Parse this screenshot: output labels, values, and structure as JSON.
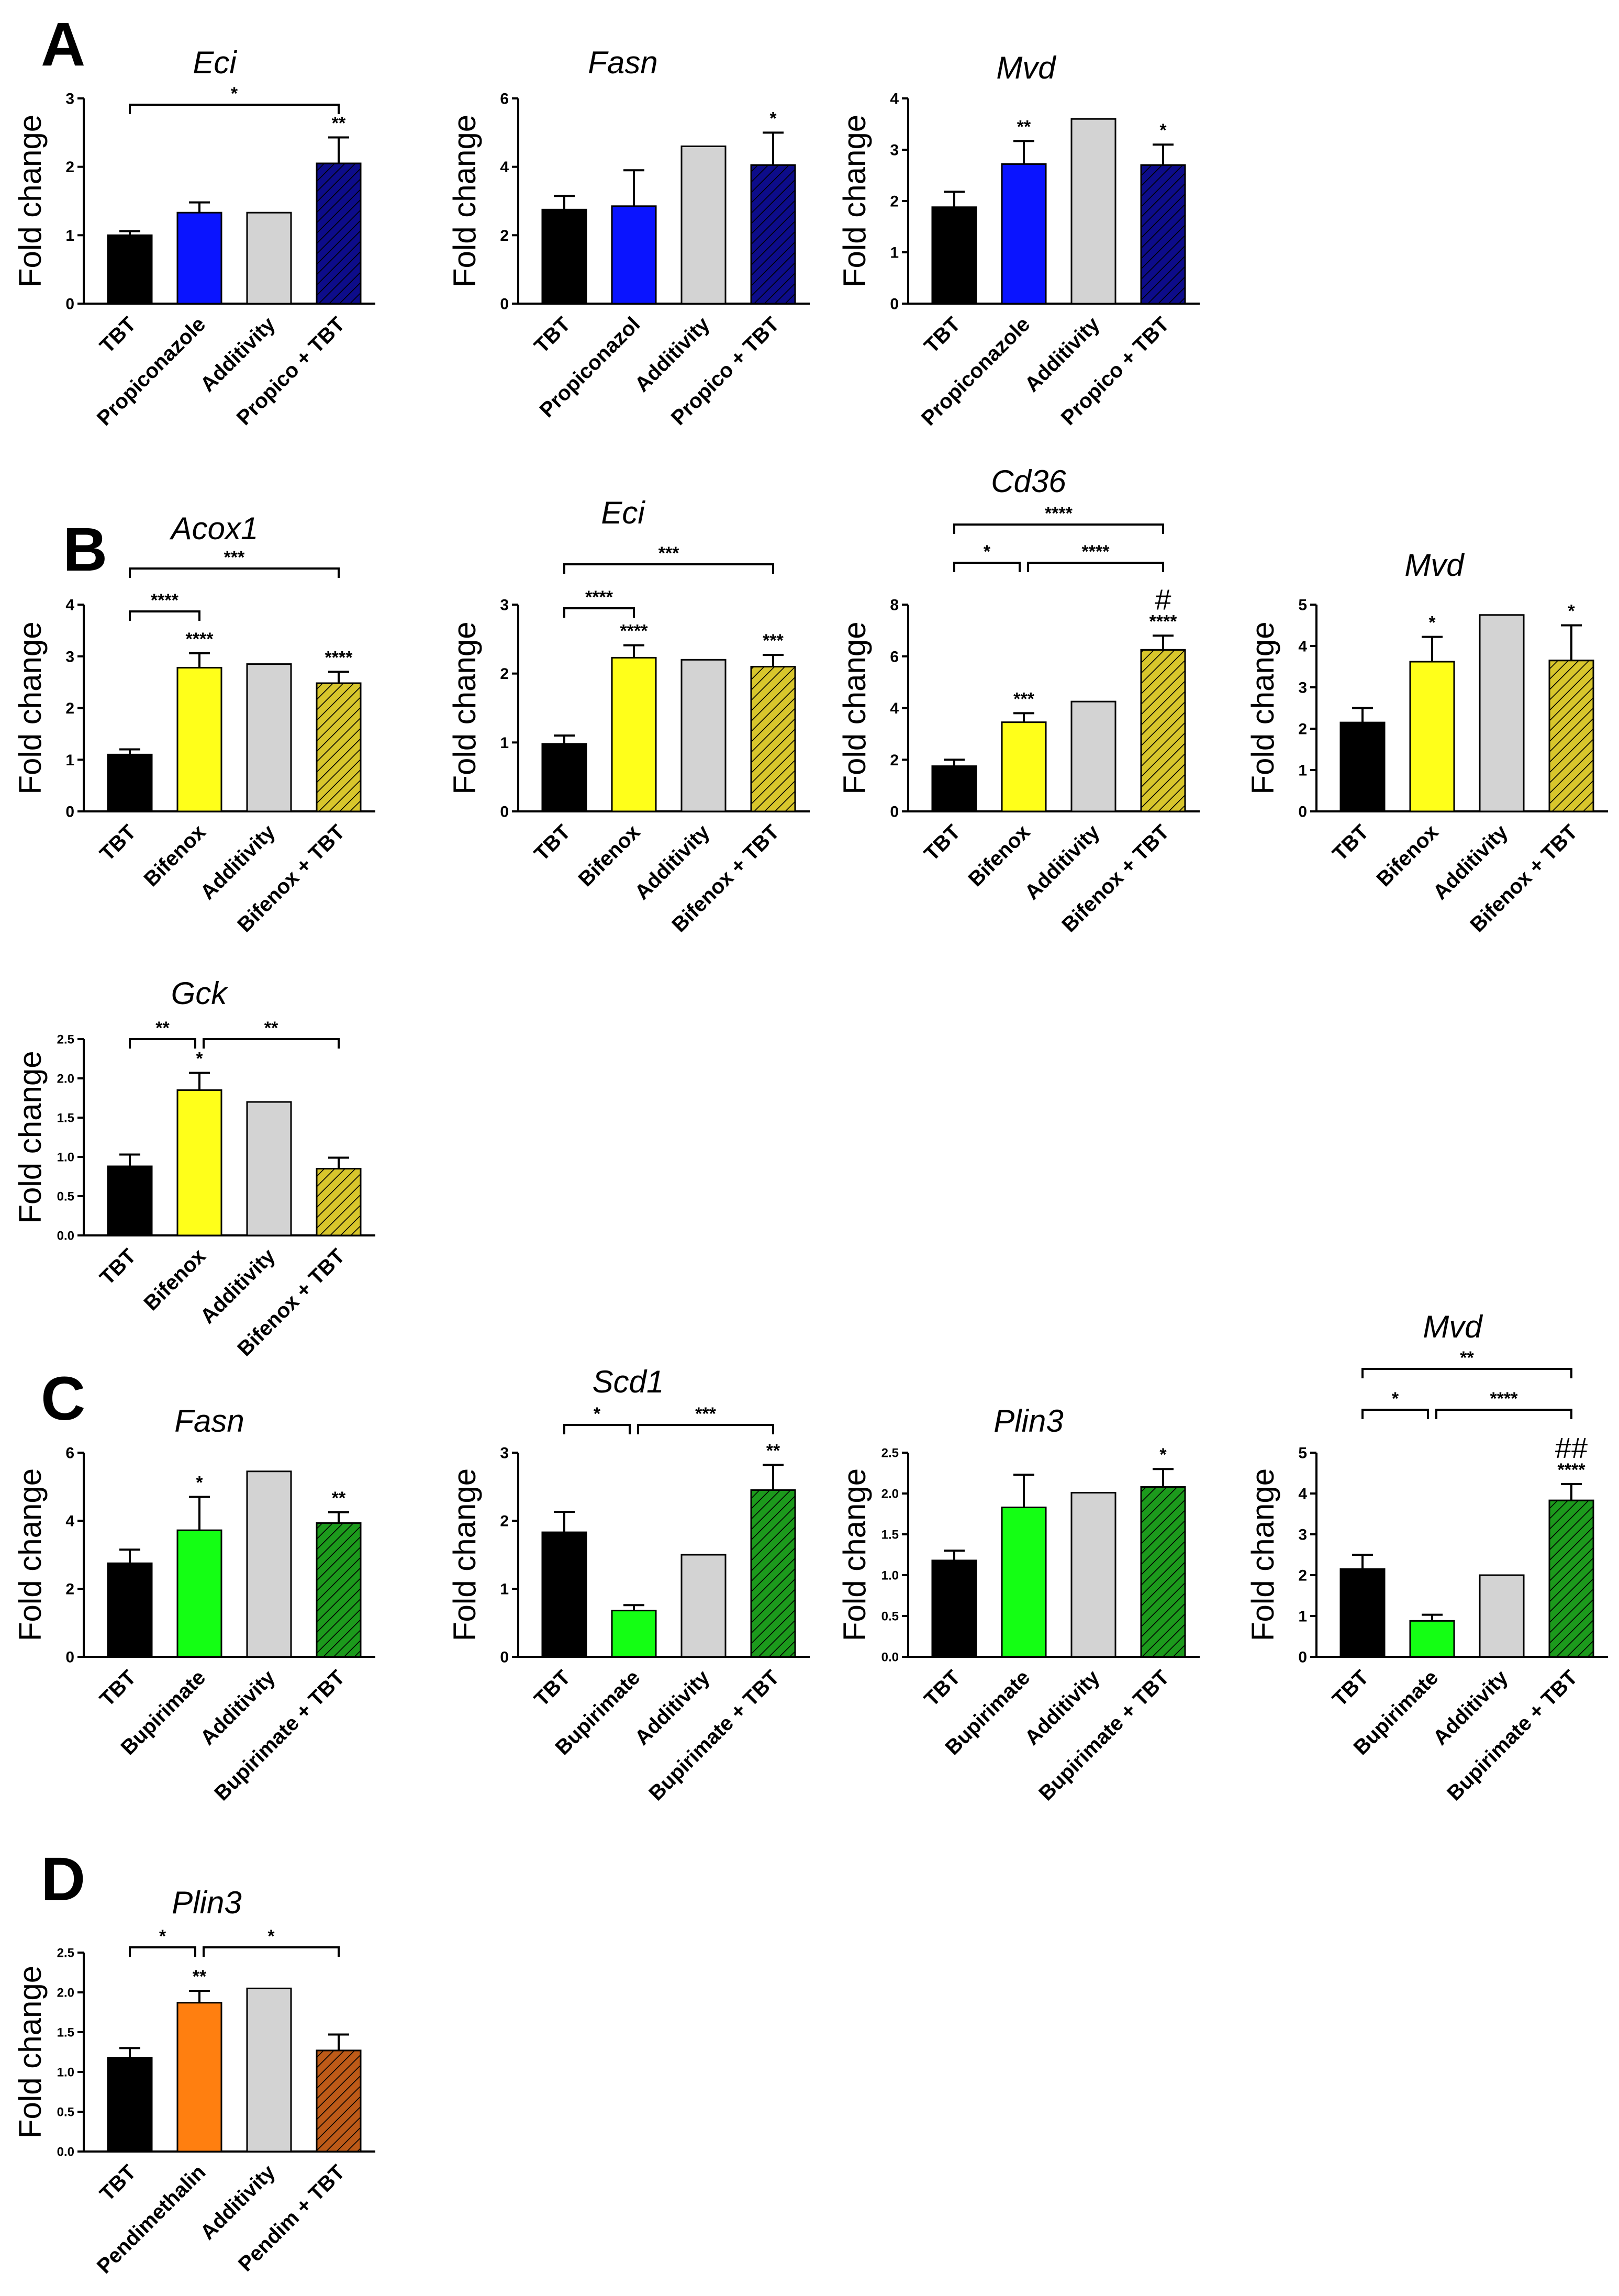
{
  "panels": [
    {
      "id": "A",
      "label": "A"
    },
    {
      "id": "B",
      "label": "B"
    },
    {
      "id": "C",
      "label": "C"
    },
    {
      "id": "D",
      "label": "D"
    }
  ],
  "colors": {
    "TBT": "#000000",
    "Propiconazole": "#0a14ff",
    "Propico + TBT": "#0d0c8a",
    "Bifenox": "#ffff1a",
    "Bifenox + TBT": "#d8c62c",
    "Bupirimate": "#14ff14",
    "Bupirimate + TBT": "#1c9a1c",
    "Pendimethalin": "#ff7f10",
    "Pendim + TBT": "#bd5a18",
    "Additivity": "#d3d3d3"
  },
  "chart_data": [
    {
      "type": "bar",
      "panel": "A",
      "gene": "Eci",
      "ylabel": "Fold change",
      "categories": [
        "TBT",
        "Propiconazole",
        "Additivity",
        "Propico + TBT"
      ],
      "values": [
        1.0,
        1.33,
        1.33,
        2.05
      ],
      "errors": [
        0.06,
        0.15,
        0,
        0.38
      ],
      "ylim": [
        0,
        3
      ],
      "yticks": [
        0,
        1,
        2,
        3
      ],
      "bar_stars": [
        "",
        "",
        "",
        "**"
      ],
      "bar_hash": [
        "",
        "",
        "",
        ""
      ],
      "brackets": [
        {
          "from": 0,
          "to": 3,
          "label": "*"
        }
      ]
    },
    {
      "type": "bar",
      "panel": "A",
      "gene": "Fasn",
      "ylabel": "Fold change",
      "categories": [
        "TBT",
        "Propiconazol",
        "Additivity",
        "Propico + TBT"
      ],
      "values": [
        2.75,
        2.85,
        4.6,
        4.05
      ],
      "errors": [
        0.4,
        1.05,
        0,
        0.95
      ],
      "ylim": [
        0,
        6
      ],
      "yticks": [
        0,
        2,
        4,
        6
      ],
      "bar_stars": [
        "",
        "",
        "",
        "*"
      ],
      "bar_hash": [
        "",
        "",
        "",
        ""
      ],
      "brackets": []
    },
    {
      "type": "bar",
      "panel": "A",
      "gene": "Mvd",
      "ylabel": "Fold change",
      "categories": [
        "TBT",
        "Propiconazole",
        "Additivity",
        "Propico + TBT"
      ],
      "values": [
        1.88,
        2.72,
        3.6,
        2.7
      ],
      "errors": [
        0.3,
        0.45,
        0,
        0.4
      ],
      "ylim": [
        0,
        4
      ],
      "yticks": [
        0,
        1,
        2,
        3,
        4
      ],
      "bar_stars": [
        "",
        "**",
        "",
        "*"
      ],
      "bar_hash": [
        "",
        "",
        "",
        ""
      ],
      "brackets": []
    },
    {
      "type": "bar",
      "panel": "B",
      "gene": "Acox1",
      "ylabel": "Fold change",
      "categories": [
        "TBT",
        "Bifenox",
        "Additivity",
        "Bifenox + TBT"
      ],
      "values": [
        1.1,
        2.78,
        2.85,
        2.48
      ],
      "errors": [
        0.1,
        0.28,
        0,
        0.22
      ],
      "ylim": [
        0,
        4
      ],
      "yticks": [
        0,
        1,
        2,
        3,
        4
      ],
      "bar_stars": [
        "",
        "****",
        "",
        "****"
      ],
      "bar_hash": [
        "",
        "",
        "",
        ""
      ],
      "brackets": [
        {
          "from": 0,
          "to": 1,
          "label": "****"
        },
        {
          "from": 0,
          "to": 3,
          "label": "***"
        }
      ]
    },
    {
      "type": "bar",
      "panel": "B",
      "gene": "Eci",
      "ylabel": "Fold change",
      "categories": [
        "TBT",
        "Bifenox",
        "Additivity",
        "Bifenox + TBT"
      ],
      "values": [
        0.98,
        2.23,
        2.2,
        2.1
      ],
      "errors": [
        0.12,
        0.18,
        0,
        0.17
      ],
      "ylim": [
        0,
        3
      ],
      "yticks": [
        0,
        1,
        2,
        3
      ],
      "bar_stars": [
        "",
        "****",
        "",
        "***"
      ],
      "bar_hash": [
        "",
        "",
        "",
        ""
      ],
      "brackets": [
        {
          "from": 0,
          "to": 1,
          "label": "****"
        },
        {
          "from": 0,
          "to": 3,
          "label": "***"
        }
      ]
    },
    {
      "type": "bar",
      "panel": "B",
      "gene": "Cd36",
      "ylabel": "Fold change",
      "categories": [
        "TBT",
        "Bifenox",
        "Additivity",
        "Bifenox + TBT"
      ],
      "values": [
        1.75,
        3.45,
        4.25,
        6.25
      ],
      "errors": [
        0.25,
        0.35,
        0,
        0.55
      ],
      "ylim": [
        0,
        8
      ],
      "yticks": [
        0,
        2,
        4,
        6,
        8
      ],
      "bar_stars": [
        "",
        "***",
        "",
        "****"
      ],
      "bar_hash": [
        "",
        "",
        "",
        "#"
      ],
      "brackets": [
        {
          "from": 0,
          "to": 1,
          "label": "*"
        },
        {
          "from": 1,
          "to": 3,
          "label": "****"
        },
        {
          "from": 0,
          "to": 3,
          "label": "****"
        }
      ]
    },
    {
      "type": "bar",
      "panel": "B",
      "gene": "Mvd",
      "ylabel": "Fold change",
      "categories": [
        "TBT",
        "Bifenox",
        "Additivity",
        "Bifenox + TBT"
      ],
      "values": [
        2.15,
        3.62,
        4.75,
        3.65
      ],
      "errors": [
        0.35,
        0.6,
        0,
        0.85
      ],
      "ylim": [
        0,
        5
      ],
      "yticks": [
        0,
        1,
        2,
        3,
        4,
        5
      ],
      "bar_stars": [
        "",
        "*",
        "",
        "*"
      ],
      "bar_hash": [
        "",
        "",
        "",
        ""
      ],
      "brackets": []
    },
    {
      "type": "bar",
      "panel": "B",
      "gene": "Gck",
      "ylabel": "Fold change",
      "categories": [
        "TBT",
        "Bifenox",
        "Additivity",
        "Bifenox + TBT"
      ],
      "values": [
        0.88,
        1.85,
        1.7,
        0.85
      ],
      "errors": [
        0.15,
        0.22,
        0,
        0.14
      ],
      "ylim": [
        0,
        2.5
      ],
      "yticks": [
        0.0,
        0.5,
        1.0,
        1.5,
        2.0,
        2.5
      ],
      "bar_stars": [
        "",
        "*",
        "",
        ""
      ],
      "bar_hash": [
        "",
        "",
        "",
        ""
      ],
      "brackets": [
        {
          "from": 0,
          "to": 1,
          "label": "**"
        },
        {
          "from": 1,
          "to": 3,
          "label": "**"
        }
      ]
    },
    {
      "type": "bar",
      "panel": "C",
      "gene": "Fasn",
      "ylabel": "Fold change",
      "categories": [
        "TBT",
        "Bupirimate",
        "Additivity",
        "Bupirimate + TBT"
      ],
      "values": [
        2.75,
        3.72,
        5.45,
        3.93
      ],
      "errors": [
        0.4,
        0.98,
        0,
        0.32
      ],
      "ylim": [
        0,
        6
      ],
      "yticks": [
        0,
        2,
        4,
        6
      ],
      "bar_stars": [
        "",
        "*",
        "",
        "**"
      ],
      "bar_hash": [
        "",
        "",
        "",
        ""
      ],
      "brackets": []
    },
    {
      "type": "bar",
      "panel": "C",
      "gene": "Scd1",
      "ylabel": "Fold change",
      "categories": [
        "TBT",
        "Bupirimate",
        "Additivity",
        "Bupirimate + TBT"
      ],
      "values": [
        1.83,
        0.68,
        1.5,
        2.45
      ],
      "errors": [
        0.3,
        0.08,
        0,
        0.37
      ],
      "ylim": [
        0,
        3
      ],
      "yticks": [
        0,
        1,
        2,
        3
      ],
      "bar_stars": [
        "",
        "",
        "",
        "**"
      ],
      "bar_hash": [
        "",
        "",
        "",
        ""
      ],
      "brackets": [
        {
          "from": 0,
          "to": 1,
          "label": "*"
        },
        {
          "from": 1,
          "to": 3,
          "label": "***"
        }
      ]
    },
    {
      "type": "bar",
      "panel": "C",
      "gene": "Plin3",
      "ylabel": "Fold change",
      "categories": [
        "TBT",
        "Bupirimate",
        "Additivity",
        "Bupirimate + TBT"
      ],
      "values": [
        1.18,
        1.83,
        2.01,
        2.08
      ],
      "errors": [
        0.12,
        0.4,
        0,
        0.22
      ],
      "ylim": [
        0,
        2.5
      ],
      "yticks": [
        0.0,
        0.5,
        1.0,
        1.5,
        2.0,
        2.5
      ],
      "bar_stars": [
        "",
        "",
        "",
        "*"
      ],
      "bar_hash": [
        "",
        "",
        "",
        ""
      ],
      "brackets": []
    },
    {
      "type": "bar",
      "panel": "C",
      "gene": "Mvd",
      "ylabel": "Fold change",
      "categories": [
        "TBT",
        "Bupirimate",
        "Additivity",
        "Bupirimate + TBT"
      ],
      "values": [
        2.15,
        0.88,
        2.0,
        3.83
      ],
      "errors": [
        0.35,
        0.15,
        0,
        0.4
      ],
      "ylim": [
        0,
        5
      ],
      "yticks": [
        0,
        1,
        2,
        3,
        4,
        5
      ],
      "bar_stars": [
        "",
        "",
        "",
        "****"
      ],
      "bar_hash": [
        "",
        "",
        "",
        "##"
      ],
      "brackets": [
        {
          "from": 0,
          "to": 1,
          "label": "*"
        },
        {
          "from": 1,
          "to": 3,
          "label": "****"
        },
        {
          "from": 0,
          "to": 3,
          "label": "**"
        }
      ]
    },
    {
      "type": "bar",
      "panel": "D",
      "gene": "Plin3",
      "ylabel": "Fold change",
      "categories": [
        "TBT",
        "Pendimethalin",
        "Additivity",
        "Pendim + TBT"
      ],
      "values": [
        1.18,
        1.87,
        2.05,
        1.27
      ],
      "errors": [
        0.12,
        0.15,
        0,
        0.2
      ],
      "ylim": [
        0,
        2.5
      ],
      "yticks": [
        0.0,
        0.5,
        1.0,
        1.5,
        2.0,
        2.5
      ],
      "bar_stars": [
        "",
        "**",
        "",
        ""
      ],
      "bar_hash": [
        "",
        "",
        "",
        ""
      ],
      "brackets": [
        {
          "from": 0,
          "to": 1,
          "label": "*"
        },
        {
          "from": 1,
          "to": 3,
          "label": "*"
        }
      ]
    }
  ]
}
